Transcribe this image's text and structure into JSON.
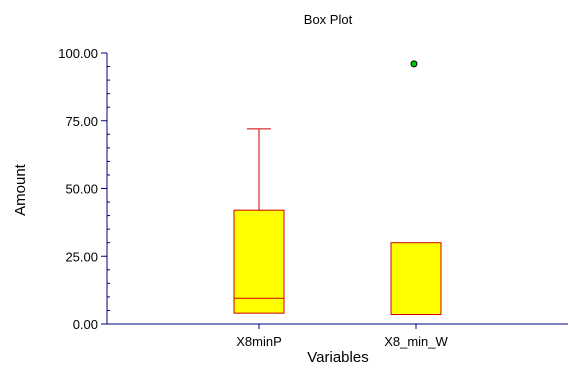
{
  "chart_data": {
    "type": "box",
    "title": "Box Plot",
    "xlabel": "Variables",
    "ylabel": "Amount",
    "ylim": [
      0,
      100
    ],
    "yticks": [
      "0.00",
      "25.00",
      "50.00",
      "75.00",
      "100.00"
    ],
    "yticks_values": [
      0,
      25,
      50,
      75,
      100
    ],
    "categories": [
      "X8minP",
      "X8_min_W"
    ],
    "boxes": [
      {
        "name": "X8minP",
        "min": 4,
        "q1": 4,
        "median": 9.5,
        "q3": 42,
        "max": 72,
        "outliers": []
      },
      {
        "name": "X8_min_W",
        "min": 3.5,
        "q1": 3.5,
        "median": 3.5,
        "q3": 30,
        "max": 30,
        "outliers": [
          96
        ]
      }
    ],
    "colors": {
      "box_fill": "#ffff00",
      "box_stroke": "#cc0000",
      "axis": "#000080",
      "outlier_fill": "#00cc00",
      "outlier_stroke": "#000000"
    }
  }
}
